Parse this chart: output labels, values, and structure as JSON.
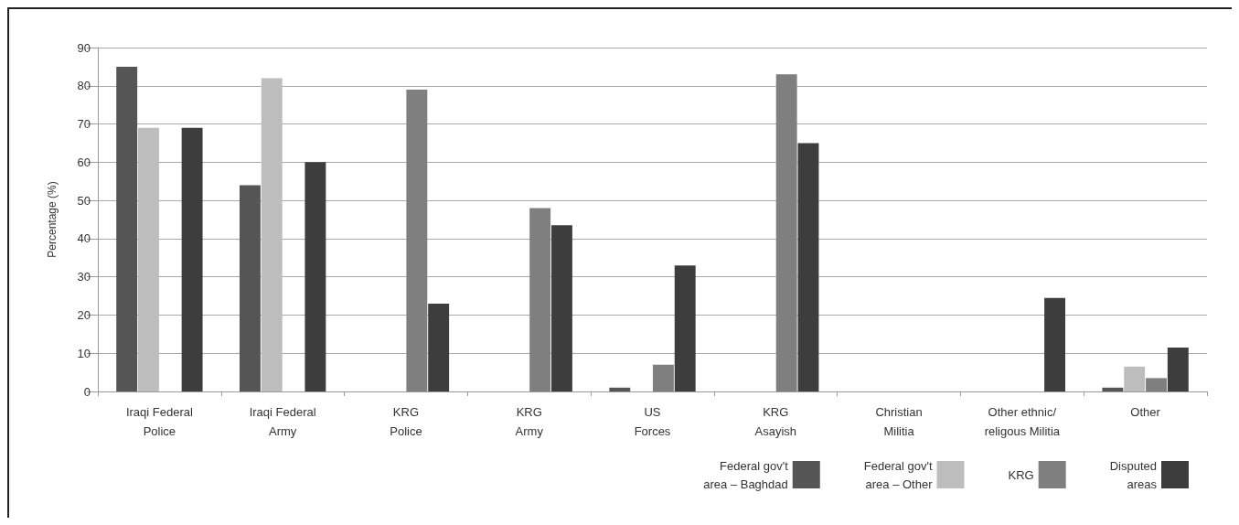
{
  "chart_data": {
    "type": "bar",
    "ylabel": "Percentage (%)",
    "categories": [
      "Iraqi Federal\nPolice",
      "Iraqi Federal\nArmy",
      "KRG\nPolice",
      "KRG\nArmy",
      "US\nForces",
      "KRG\nAsayish",
      "Christian\nMilitia",
      "Other ethnic/\nreligous Militia",
      "Other"
    ],
    "series": [
      {
        "name": "Federal gov't\narea – Baghdad",
        "color": "#555555",
        "values": [
          85,
          54,
          0,
          0,
          1,
          0,
          0,
          0,
          1
        ]
      },
      {
        "name": "Federal gov't\narea – Other",
        "color": "#bdbdbd",
        "values": [
          69,
          82,
          0,
          0,
          0,
          0,
          0,
          0,
          6.5
        ]
      },
      {
        "name": "KRG",
        "color": "#7f7f7f",
        "values": [
          0,
          0,
          79,
          48,
          7,
          83,
          0,
          0,
          3.5
        ]
      },
      {
        "name": "Disputed\nareas",
        "color": "#3d3d3d",
        "values": [
          69,
          60,
          23,
          43.5,
          33,
          65,
          0,
          24.5,
          11.5
        ]
      }
    ],
    "ylim": [
      0,
      90
    ],
    "yticks": [
      0,
      10,
      20,
      30,
      40,
      50,
      60,
      70,
      80,
      90
    ],
    "grid": "y",
    "legend": "bottom right"
  }
}
